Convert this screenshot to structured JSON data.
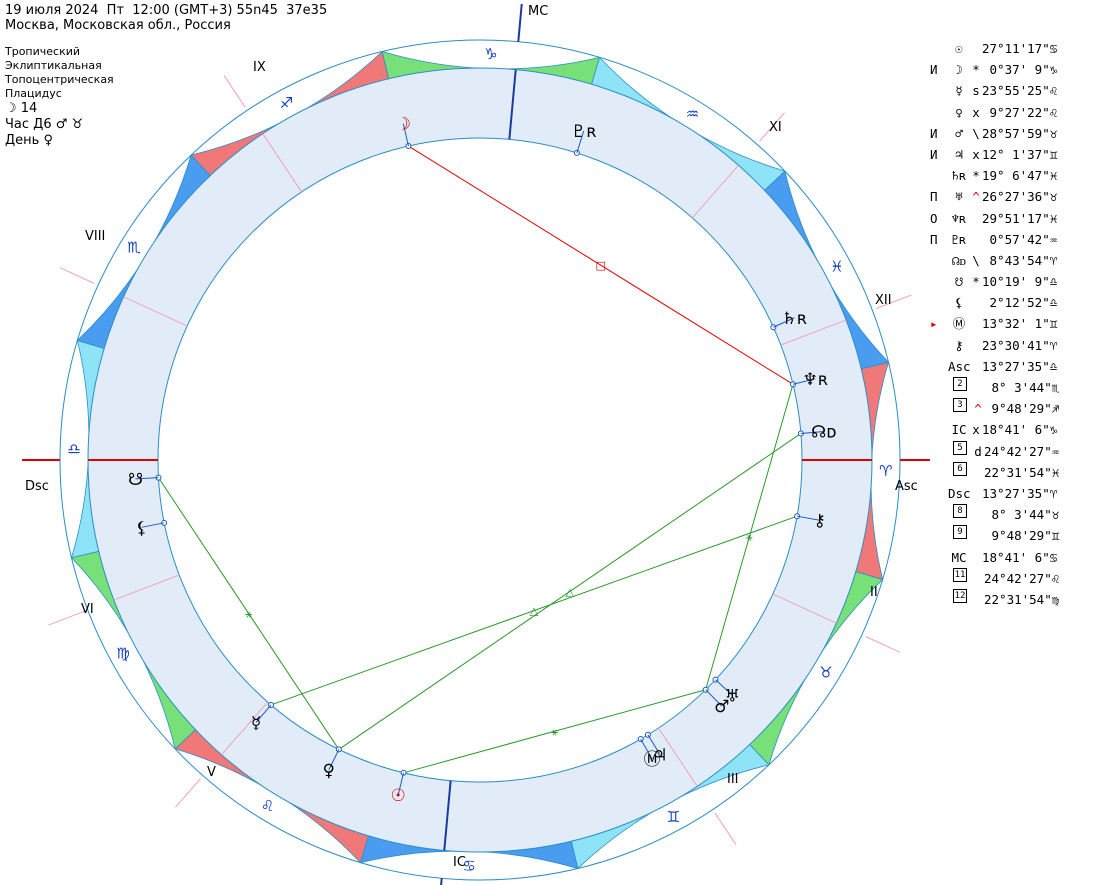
{
  "header": {
    "line1": "19 июля 2024  Пт  12:00 (GMT+3) 55n45  37e35",
    "line2": "Москва, Московская обл., Россия"
  },
  "settings": {
    "zodiac": "Тропический",
    "coords": "Эклиптикальная",
    "center": "Топоцентрическая",
    "houses": "Плацидус",
    "moon_day": "☽ 14",
    "hour": "Час Д6 ♂ ♉",
    "day": "День ♀"
  },
  "chart_labels": {
    "mc": "MC",
    "ic": "IC",
    "asc": "Asc",
    "dsc": "Dsc",
    "houses": {
      "h2": "II",
      "h3": "III",
      "h5": "V",
      "h6": "VI",
      "h8": "VIII",
      "h9": "IX",
      "h11": "XI",
      "h12": "XII"
    }
  },
  "signs": [
    {
      "glyph": "♈",
      "color": "#f07878"
    },
    {
      "glyph": "♉",
      "color": "#78e078"
    },
    {
      "glyph": "♊",
      "color": "#8ee4f6"
    },
    {
      "glyph": "♋",
      "color": "#4a9cf0"
    },
    {
      "glyph": "♌",
      "color": "#f07878"
    },
    {
      "glyph": "♍",
      "color": "#78e078"
    },
    {
      "glyph": "♎",
      "color": "#8ee4f6"
    },
    {
      "glyph": "♏",
      "color": "#4a9cf0"
    },
    {
      "glyph": "♐",
      "color": "#f07878"
    },
    {
      "glyph": "♑",
      "color": "#78e078"
    },
    {
      "glyph": "♒",
      "color": "#8ee4f6"
    },
    {
      "glyph": "♓",
      "color": "#4a9cf0"
    }
  ],
  "chart_planets": [
    {
      "name": "sun",
      "glyph": "☉",
      "lon": 117.19,
      "color": "#e00000"
    },
    {
      "name": "moon",
      "glyph": "☽",
      "lon": 270.62,
      "color": "#e00000"
    },
    {
      "name": "mercury",
      "glyph": "☿",
      "lon": 143.93,
      "color": "#000"
    },
    {
      "name": "venus",
      "glyph": "♀",
      "lon": 129.46,
      "color": "#000"
    },
    {
      "name": "mars",
      "glyph": "♂",
      "lon": 58.97,
      "color": "#000"
    },
    {
      "name": "jupiter",
      "glyph": "♃",
      "lon": 72.03,
      "color": "#000"
    },
    {
      "name": "saturn",
      "glyph": "♄ʀ",
      "lon": 349.11,
      "color": "#000"
    },
    {
      "name": "uranus",
      "glyph": "♅",
      "lon": 56.46,
      "color": "#000"
    },
    {
      "name": "neptune",
      "glyph": "♆ʀ",
      "lon": 359.85,
      "color": "#000"
    },
    {
      "name": "pluto",
      "glyph": "♇ʀ",
      "lon": 300.96,
      "color": "#000"
    },
    {
      "name": "node",
      "glyph": "☊ᴅ",
      "lon": 8.73,
      "color": "#000"
    },
    {
      "name": "south-node",
      "glyph": "☋",
      "lon": 190.32,
      "color": "#000"
    },
    {
      "name": "lilith",
      "glyph": "⚸",
      "lon": 182.21,
      "color": "#000"
    },
    {
      "name": "fortune",
      "glyph": "Ⓜ",
      "lon": 73.53,
      "color": "#000"
    },
    {
      "name": "chiron",
      "glyph": "⚷",
      "lon": 23.51,
      "color": "#000"
    }
  ],
  "aspects": [
    {
      "from": 117.19,
      "to": 58.97,
      "symbol": "⚹",
      "color": "#2a9a2a"
    },
    {
      "from": 129.46,
      "to": 190.32,
      "symbol": "⚹",
      "color": "#2a9a2a"
    },
    {
      "from": 143.93,
      "to": 23.51,
      "symbol": "△",
      "color": "#2a9a2a"
    },
    {
      "from": 129.46,
      "to": 8.73,
      "symbol": "△",
      "color": "#2a9a2a"
    },
    {
      "from": 58.97,
      "to": 359.85,
      "symbol": "⚹",
      "color": "#2a9a2a"
    },
    {
      "from": 359.85,
      "to": 270.62,
      "symbol": "□",
      "color": "#e00000"
    }
  ],
  "positions": [
    {
      "pre": "",
      "glyph": "☉",
      "mark": "",
      "deg": "27°11'17\"",
      "sign": "♋"
    },
    {
      "pre": "И",
      "glyph": "☽",
      "mark": "*",
      "deg": " 0°37' 9\"",
      "sign": "♑"
    },
    {
      "pre": "",
      "glyph": "☿",
      "mark": "s",
      "deg": "23°55'25\"",
      "sign": "♌"
    },
    {
      "pre": "",
      "glyph": "♀",
      "mark": "x",
      "deg": " 9°27'22\"",
      "sign": "♌"
    },
    {
      "pre": "И",
      "glyph": "♂",
      "mark": "\\",
      "deg": "28°57'59\"",
      "sign": "♉"
    },
    {
      "pre": "И",
      "glyph": "♃",
      "mark": "x",
      "deg": "12° 1'37\"",
      "sign": "♊"
    },
    {
      "pre": "",
      "glyph": "♄ʀ",
      "mark": "*",
      "deg": "19° 6'47\"",
      "sign": "♓"
    },
    {
      "pre": "П",
      "glyph": "♅",
      "mark": "^",
      "deg": "26°27'36\"",
      "sign": "♉",
      "red_mark": true
    },
    {
      "pre": "О",
      "glyph": "♆ʀ",
      "mark": "",
      "deg": "29°51'17\"",
      "sign": "♓"
    },
    {
      "pre": "П",
      "glyph": "♇ʀ",
      "mark": "",
      "deg": " 0°57'42\"",
      "sign": "♒"
    },
    {
      "pre": "",
      "glyph": "☊ᴅ",
      "mark": "\\",
      "deg": " 8°43'54\"",
      "sign": "♈"
    },
    {
      "pre": "",
      "glyph": "☋",
      "mark": "*",
      "deg": "10°19' 9\"",
      "sign": "♎"
    },
    {
      "pre": "",
      "glyph": "⚸",
      "mark": "",
      "deg": " 2°12'52\"",
      "sign": "♎"
    },
    {
      "pre": "▸",
      "glyph": "Ⓜ",
      "mark": "",
      "deg": "13°32' 1\"",
      "sign": "♊",
      "red_pre": true
    },
    {
      "pre": "",
      "glyph": "⚷",
      "mark": "",
      "deg": "23°30'41\"",
      "sign": "♈"
    },
    {
      "pre": "",
      "glyph": "Asc",
      "mark": "",
      "deg": "13°27'35\"",
      "sign": "♎"
    },
    {
      "pre": "",
      "box": "2",
      "mark": "",
      "deg": " 8° 3'44\"",
      "sign": "♏"
    },
    {
      "pre": "",
      "box": "3",
      "mark": "^",
      "deg": " 9°48'29\"",
      "sign": "♐",
      "red_mark": true
    },
    {
      "pre": "",
      "glyph": "IC",
      "mark": "x",
      "deg": "18°41' 6\"",
      "sign": "♑"
    },
    {
      "pre": "",
      "box": "5",
      "mark": "d",
      "deg": "24°42'27\"",
      "sign": "♒"
    },
    {
      "pre": "",
      "box": "6",
      "mark": "",
      "deg": "22°31'54\"",
      "sign": "♓"
    },
    {
      "pre": "",
      "glyph": "Dsc",
      "mark": "",
      "deg": "13°27'35\"",
      "sign": "♈"
    },
    {
      "pre": "",
      "box": "8",
      "mark": "",
      "deg": " 8° 3'44\"",
      "sign": "♉"
    },
    {
      "pre": "",
      "box": "9",
      "mark": "",
      "deg": " 9°48'29\"",
      "sign": "♊"
    },
    {
      "pre": "",
      "glyph": "MC",
      "mark": "",
      "deg": "18°41' 6\"",
      "sign": "♋"
    },
    {
      "pre": "",
      "box": "11",
      "mark": "",
      "deg": "24°42'27\"",
      "sign": "♌"
    },
    {
      "pre": "",
      "box": "12",
      "mark": "",
      "deg": "22°31'54\"",
      "sign": "♍"
    }
  ]
}
